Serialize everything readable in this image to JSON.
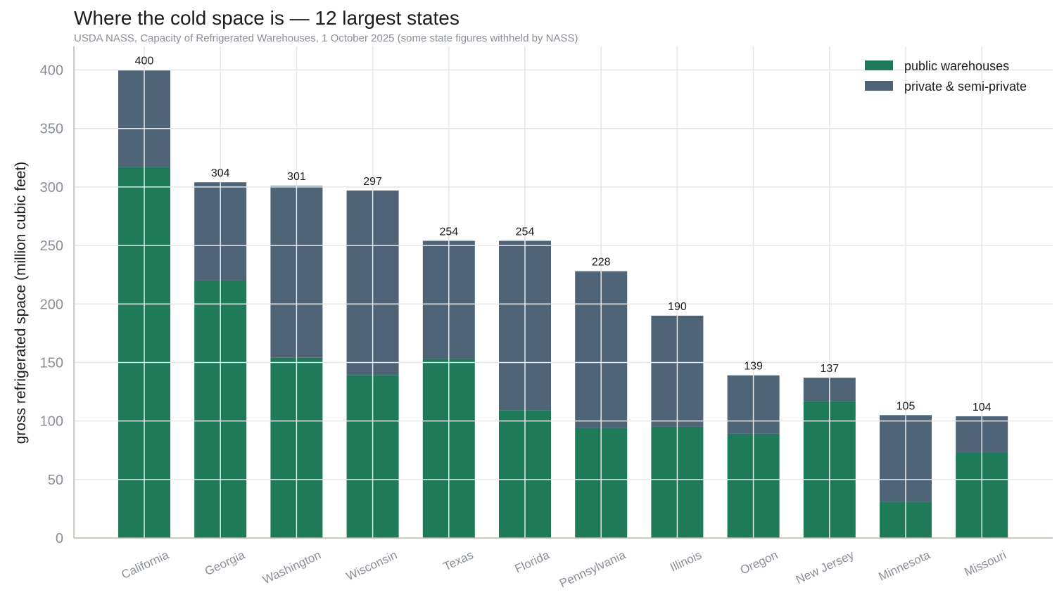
{
  "title": "Where the cold space is — 12 largest states",
  "subtitle": "USDA NASS, Capacity of Refrigerated Warehouses, 1 October 2025 (some state figures withheld by NASS)",
  "colors": {
    "public": "#1f7a5a",
    "private": "#4f6477",
    "grid": "#e6e6e6",
    "axis": "#b8b8a8"
  },
  "chart_data": {
    "type": "bar",
    "stacked": true,
    "title": "Where the cold space is — 12 largest states",
    "subtitle": "USDA NASS, Capacity of Refrigerated Warehouses, 1 October 2025 (some state figures withheld by NASS)",
    "xlabel": "",
    "ylabel": "gross refrigerated space (million cubic feet)",
    "ylim": [
      0,
      420
    ],
    "yticks": [
      0,
      50,
      100,
      150,
      200,
      250,
      300,
      350,
      400
    ],
    "grid": true,
    "legend_position": "top-right",
    "categories": [
      "California",
      "Georgia",
      "Washington",
      "Wisconsin",
      "Texas",
      "Florida",
      "Pennsylvania",
      "Illinois",
      "Oregon",
      "New Jersey",
      "Minnesota",
      "Missouri"
    ],
    "series": [
      {
        "name": "public warehouses",
        "values": [
          317,
          220,
          154,
          139,
          153,
          109,
          94,
          95,
          89,
          117,
          31,
          73
        ]
      },
      {
        "name": "private & semi-private",
        "values": [
          83,
          84,
          147,
          158,
          101,
          145,
          134,
          95,
          50,
          20,
          74,
          31
        ]
      }
    ],
    "totals": [
      400,
      304,
      301,
      297,
      254,
      254,
      228,
      190,
      139,
      137,
      105,
      104
    ]
  }
}
